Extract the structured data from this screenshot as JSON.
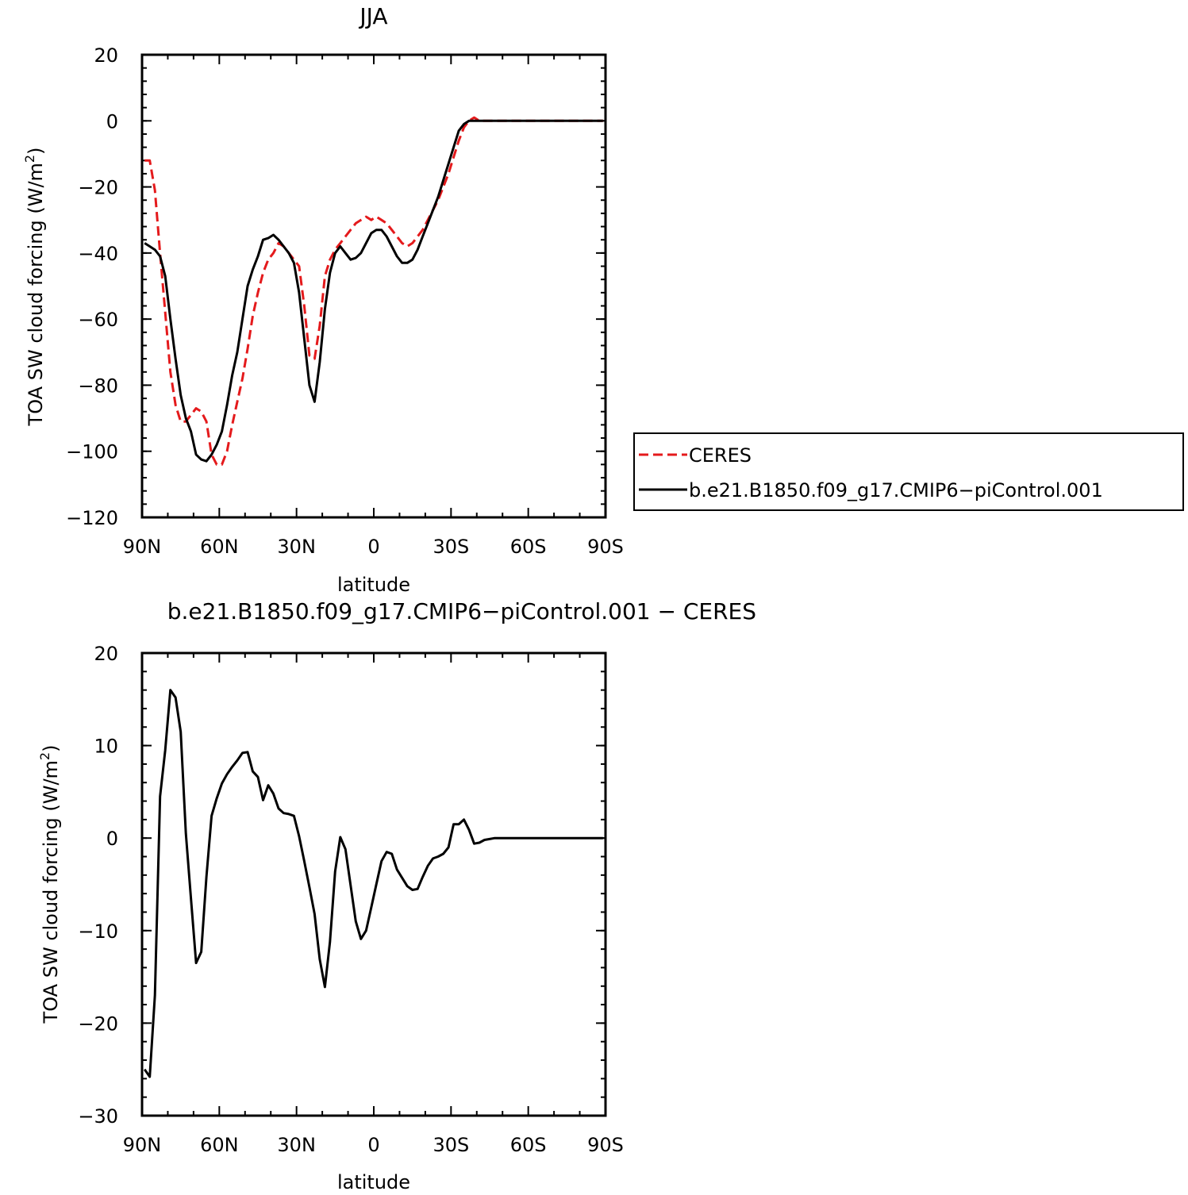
{
  "chart_data": [
    {
      "type": "line",
      "title": "JJA",
      "xlabel": "latitude",
      "ylabel_main": "TOA SW cloud forcing (W/m",
      "ylabel_sup": "2",
      "ylabel_close": ")",
      "xlim": [
        90,
        -90
      ],
      "ylim": [
        -120,
        20
      ],
      "x_ticks": [
        90,
        60,
        30,
        0,
        -30,
        -60,
        -90
      ],
      "x_tick_labels": [
        "90N",
        "60N",
        "30N",
        "0",
        "30S",
        "60S",
        "90S"
      ],
      "y_ticks": [
        20,
        0,
        -20,
        -40,
        -60,
        -80,
        -100,
        -120
      ],
      "y_tick_labels": [
        "20",
        "0",
        "−20",
        "−40",
        "−60",
        "−80",
        "−100",
        "−120"
      ],
      "legend": {
        "placement": "right",
        "entries": [
          "CERES",
          "b.e21.B1850.f09_g17.CMIP6−piControl.001"
        ]
      },
      "series": [
        {
          "name": "CERES",
          "color": "#e41a1c",
          "dash": "dashed",
          "x": [
            89,
            87,
            85,
            83,
            81,
            79,
            77,
            75,
            73,
            71,
            69,
            67,
            65,
            63,
            61,
            59,
            57,
            55,
            53,
            51,
            49,
            47,
            45,
            43,
            41,
            39,
            37,
            35,
            33,
            31,
            29,
            27,
            25,
            23,
            21,
            19,
            17,
            15,
            13,
            11,
            9,
            7,
            5,
            3,
            1,
            -1,
            -3,
            -5,
            -7,
            -9,
            -11,
            -13,
            -15,
            -17,
            -19,
            -21,
            -23,
            -25,
            -27,
            -29,
            -31,
            -33,
            -35,
            -37,
            -39,
            -41,
            -43,
            -45,
            -47,
            -49,
            -51,
            -53,
            -55,
            -57,
            -59,
            -61,
            -63,
            -65,
            -67,
            -69,
            -71,
            -73,
            -75,
            -77,
            -79,
            -81,
            -83,
            -85,
            -87,
            -89
          ],
          "values": [
            -12,
            -12,
            -21,
            -40,
            -58,
            -76,
            -86,
            -91,
            -91,
            -89,
            -87,
            -88,
            -91,
            -101,
            -104,
            -104,
            -100,
            -92,
            -85,
            -78,
            -69,
            -59,
            -52,
            -46,
            -42,
            -40,
            -37,
            -38,
            -40,
            -42,
            -44,
            -56,
            -71,
            -72,
            -62,
            -47,
            -42,
            -39,
            -37,
            -35,
            -33,
            -31,
            -30,
            -29,
            -30,
            -29,
            -30,
            -31,
            -33,
            -35,
            -37,
            -38,
            -37,
            -35,
            -33,
            -30,
            -27,
            -24,
            -20,
            -16,
            -11,
            -6,
            -2,
            0,
            1,
            0,
            0,
            0,
            0,
            0,
            0,
            0,
            0,
            0,
            0,
            0,
            0,
            0,
            0,
            0,
            0,
            0,
            0,
            0,
            0,
            0,
            0,
            0,
            0,
            0
          ]
        },
        {
          "name": "b.e21.B1850.f09_g17.CMIP6−piControl.001",
          "color": "#000000",
          "dash": "solid",
          "x": [
            89,
            87,
            85,
            83,
            81,
            79,
            77,
            75,
            73,
            71,
            69,
            67,
            65,
            63,
            61,
            59,
            57,
            55,
            53,
            51,
            49,
            47,
            45,
            43,
            41,
            39,
            37,
            35,
            33,
            31,
            29,
            27,
            25,
            23,
            21,
            19,
            17,
            15,
            13,
            11,
            9,
            7,
            5,
            3,
            1,
            -1,
            -3,
            -5,
            -7,
            -9,
            -11,
            -13,
            -15,
            -17,
            -19,
            -21,
            -23,
            -25,
            -27,
            -29,
            -31,
            -33,
            -35,
            -37,
            -39,
            -41,
            -43,
            -45,
            -47,
            -49,
            -51,
            -53,
            -55,
            -57,
            -59,
            -61,
            -63,
            -65,
            -67,
            -69,
            -71,
            -73,
            -75,
            -77,
            -79,
            -81,
            -83,
            -85,
            -87,
            -89
          ],
          "values": [
            -37,
            -38,
            -39,
            -41,
            -47,
            -60,
            -72,
            -83,
            -90,
            -94,
            -101,
            -102.5,
            -103,
            -101,
            -98,
            -94,
            -86,
            -77,
            -70,
            -60,
            -50,
            -45,
            -41,
            -36,
            -35.5,
            -34.5,
            -36,
            -38,
            -40,
            -43,
            -52,
            -66,
            -80,
            -85,
            -73,
            -57,
            -46,
            -40,
            -38,
            -40,
            -42,
            -41.5,
            -40,
            -37,
            -34,
            -33,
            -33,
            -35,
            -38,
            -41,
            -43,
            -43,
            -42,
            -39,
            -35,
            -31,
            -27,
            -23,
            -18,
            -13,
            -8,
            -3,
            -1,
            0,
            0,
            0,
            0,
            0,
            0,
            0,
            0,
            0,
            0,
            0,
            0,
            0,
            0,
            0,
            0,
            0,
            0,
            0,
            0,
            0,
            0,
            0,
            0,
            0,
            0,
            0
          ]
        }
      ]
    },
    {
      "type": "line",
      "title": "b.e21.B1850.f09_g17.CMIP6−piControl.001  −  CERES",
      "xlabel": "latitude",
      "ylabel_main": "TOA SW cloud forcing (W/m",
      "ylabel_sup": "2",
      "ylabel_close": ")",
      "xlim": [
        90,
        -90
      ],
      "ylim": [
        -30,
        20
      ],
      "x_ticks": [
        90,
        60,
        30,
        0,
        -30,
        -60,
        -90
      ],
      "x_tick_labels": [
        "90N",
        "60N",
        "30N",
        "0",
        "30S",
        "60S",
        "90S"
      ],
      "y_ticks": [
        20,
        10,
        0,
        -10,
        -20,
        -30
      ],
      "y_tick_labels": [
        "20",
        "10",
        "0",
        "−10",
        "−20",
        "−30"
      ],
      "series": [
        {
          "color": "#000000",
          "dash": "solid",
          "x": [
            89,
            87,
            85,
            83,
            81,
            79,
            77,
            75,
            73,
            71,
            69,
            67,
            65,
            63,
            61,
            59,
            57,
            55,
            53,
            51,
            49,
            47,
            45,
            43,
            41,
            39,
            37,
            35,
            33,
            31,
            29,
            27,
            25,
            23,
            21,
            19,
            17,
            15,
            13,
            11,
            9,
            7,
            5,
            3,
            1,
            -1,
            -3,
            -5,
            -7,
            -9,
            -11,
            -13,
            -15,
            -17,
            -19,
            -21,
            -23,
            -25,
            -27,
            -29,
            -31,
            -33,
            -35,
            -37,
            -39,
            -41,
            -43,
            -45,
            -47,
            -49,
            -51,
            -53,
            -55,
            -57,
            -59,
            -61,
            -63,
            -65,
            -67,
            -69,
            -71,
            -73,
            -75,
            -77,
            -79,
            -81,
            -83,
            -85,
            -87,
            -89
          ],
          "values": [
            -25,
            -25.8,
            -17,
            4.5,
            9.5,
            16,
            15.2,
            11.5,
            0.5,
            -6.5,
            -13.5,
            -12.3,
            -4.2,
            2.4,
            4.3,
            5.9,
            6.9,
            7.7,
            8.4,
            9.2,
            9.3,
            7.2,
            6.6,
            4.1,
            5.7,
            4.8,
            3.2,
            2.7,
            2.6,
            2.4,
            0.2,
            -2.5,
            -5.3,
            -8.2,
            -13.1,
            -16.1,
            -11.2,
            -3.6,
            0.1,
            -1.2,
            -5.1,
            -9.0,
            -10.9,
            -10.0,
            -7.5,
            -5.0,
            -2.5,
            -1.5,
            -1.7,
            -3.4,
            -4.3,
            -5.2,
            -5.6,
            -5.5,
            -4.2,
            -3.0,
            -2.2,
            -2.0,
            -1.7,
            -1.0,
            1.5,
            1.5,
            2.0,
            0.9,
            -0.6,
            -0.5,
            -0.2,
            -0.1,
            0,
            0,
            0,
            0,
            0,
            0,
            0,
            0,
            0,
            0,
            0,
            0,
            0,
            0,
            0,
            0,
            0,
            0,
            0,
            0,
            0,
            0
          ]
        }
      ]
    }
  ]
}
